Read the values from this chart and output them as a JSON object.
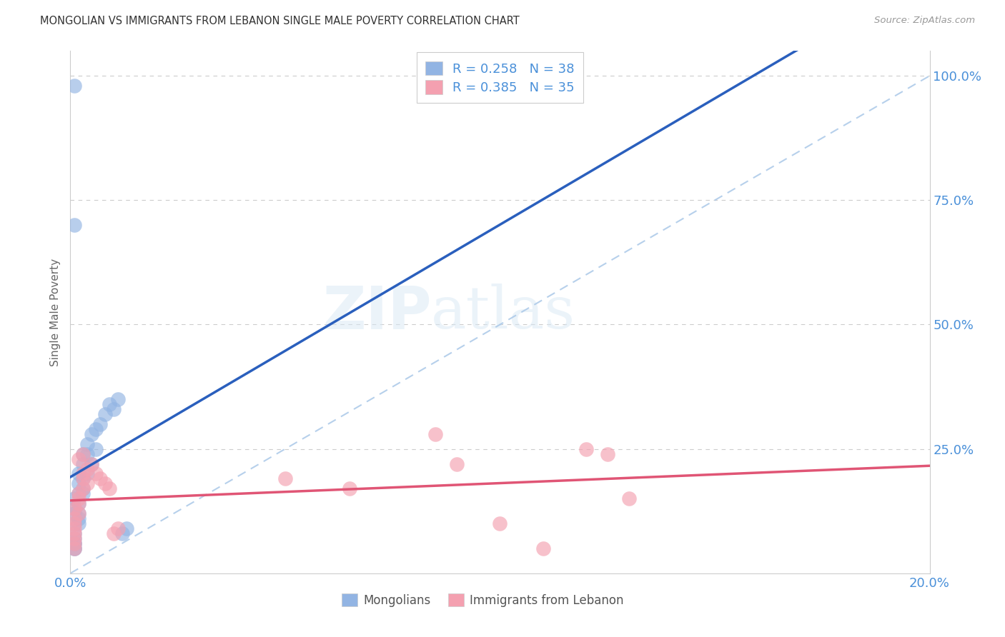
{
  "title": "MONGOLIAN VS IMMIGRANTS FROM LEBANON SINGLE MALE POVERTY CORRELATION CHART",
  "source": "Source: ZipAtlas.com",
  "ylabel": "Single Male Poverty",
  "legend_blue_r": "R = 0.258",
  "legend_blue_n": "N = 38",
  "legend_pink_r": "R = 0.385",
  "legend_pink_n": "N = 35",
  "legend_label_blue": "Mongolians",
  "legend_label_pink": "Immigrants from Lebanon",
  "blue_color": "#92b4e3",
  "pink_color": "#f4a0b0",
  "blue_line_color": "#2a5fbd",
  "pink_line_color": "#e05575",
  "grid_color": "#cccccc",
  "axis_label_color": "#4a90d9",
  "xlim": [
    0.0,
    0.2
  ],
  "ylim": [
    0.0,
    1.05
  ],
  "blue_x": [
    0.001,
    0.001,
    0.001,
    0.001,
    0.001,
    0.001,
    0.001,
    0.001,
    0.002,
    0.002,
    0.002,
    0.002,
    0.002,
    0.002,
    0.003,
    0.003,
    0.003,
    0.003,
    0.004,
    0.004,
    0.005,
    0.005,
    0.006,
    0.007,
    0.008,
    0.009,
    0.01,
    0.011,
    0.012,
    0.013,
    0.001,
    0.001,
    0.002,
    0.003,
    0.004,
    0.006,
    0.001,
    0.001
  ],
  "blue_y": [
    0.05,
    0.07,
    0.08,
    0.1,
    0.12,
    0.13,
    0.15,
    0.06,
    0.1,
    0.12,
    0.14,
    0.16,
    0.18,
    0.2,
    0.17,
    0.19,
    0.22,
    0.24,
    0.2,
    0.26,
    0.22,
    0.28,
    0.29,
    0.3,
    0.32,
    0.34,
    0.33,
    0.35,
    0.08,
    0.09,
    0.7,
    0.98,
    0.11,
    0.16,
    0.24,
    0.25,
    0.05,
    0.06
  ],
  "pink_x": [
    0.001,
    0.001,
    0.001,
    0.001,
    0.001,
    0.001,
    0.001,
    0.002,
    0.002,
    0.002,
    0.002,
    0.003,
    0.003,
    0.003,
    0.004,
    0.004,
    0.005,
    0.006,
    0.007,
    0.008,
    0.009,
    0.01,
    0.011,
    0.001,
    0.002,
    0.003,
    0.05,
    0.065,
    0.085,
    0.09,
    0.1,
    0.11,
    0.12,
    0.125,
    0.13
  ],
  "pink_y": [
    0.06,
    0.07,
    0.08,
    0.09,
    0.1,
    0.05,
    0.11,
    0.12,
    0.14,
    0.15,
    0.16,
    0.17,
    0.19,
    0.2,
    0.18,
    0.21,
    0.22,
    0.2,
    0.19,
    0.18,
    0.17,
    0.08,
    0.09,
    0.13,
    0.23,
    0.24,
    0.19,
    0.17,
    0.28,
    0.22,
    0.1,
    0.05,
    0.25,
    0.24,
    0.15
  ]
}
